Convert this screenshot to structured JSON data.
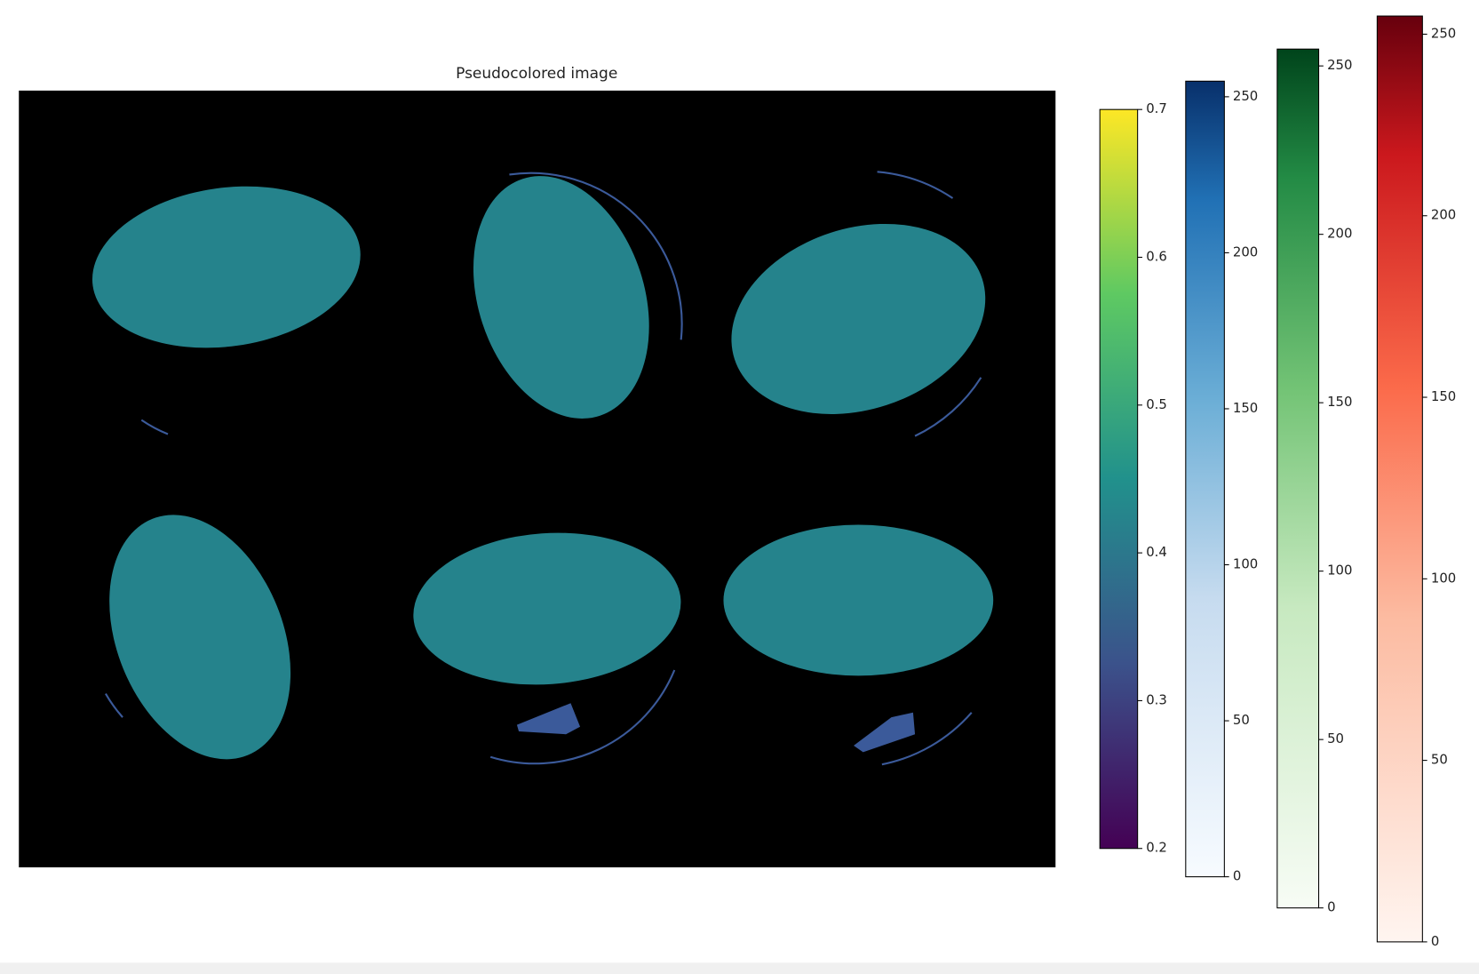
{
  "chart_data": {
    "type": "image",
    "title": "Pseudocolored image",
    "colorbars": [
      {
        "colormap": "viridis",
        "lim": [
          0.2,
          0.7
        ],
        "ticks": [
          0.2,
          0.3,
          0.4,
          0.5,
          0.6,
          0.7
        ]
      },
      {
        "colormap": "Blues",
        "lim": [
          0,
          255
        ],
        "ticks": [
          0,
          50,
          100,
          150,
          200,
          250
        ]
      },
      {
        "colormap": "Greens",
        "lim": [
          0,
          255
        ],
        "ticks": [
          0,
          50,
          100,
          150,
          200,
          250
        ]
      },
      {
        "colormap": "Reds",
        "lim": [
          0,
          255
        ],
        "ticks": [
          0,
          50,
          100,
          150,
          200,
          250
        ]
      }
    ]
  }
}
